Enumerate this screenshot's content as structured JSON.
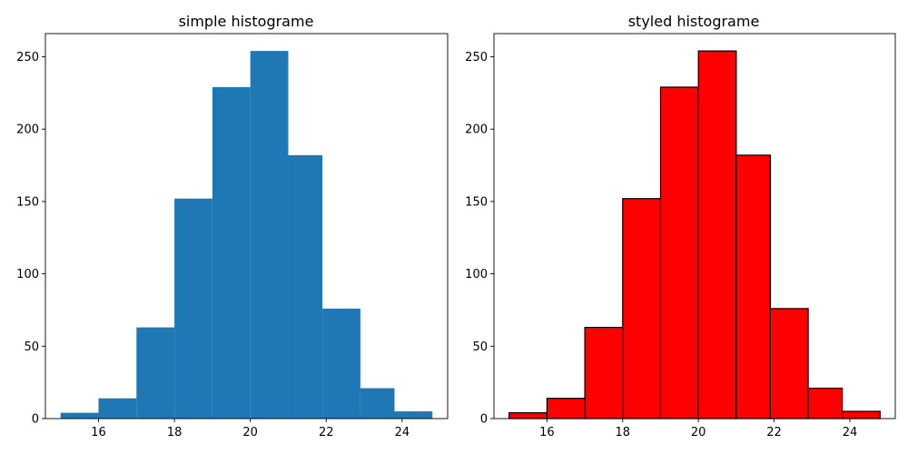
{
  "chart_data": [
    {
      "type": "bar",
      "title": "simple histograme",
      "xlabel": "",
      "ylabel": "",
      "bin_edges": [
        15.0,
        16.0,
        17.0,
        18.0,
        19.0,
        20.0,
        21.0,
        21.9,
        22.9,
        23.8,
        24.8
      ],
      "values": [
        4,
        14,
        63,
        152,
        229,
        254,
        182,
        76,
        21,
        5
      ],
      "xlim": [
        14.6,
        25.2
      ],
      "ylim": [
        0,
        266
      ],
      "x_ticks": [
        16,
        18,
        20,
        22,
        24
      ],
      "y_ticks": [
        0,
        50,
        100,
        150,
        200,
        250
      ],
      "bar_color": "#1f77b4",
      "edge_color": null,
      "grid": false
    },
    {
      "type": "bar",
      "title": "styled histograme",
      "xlabel": "",
      "ylabel": "",
      "bin_edges": [
        15.0,
        16.0,
        17.0,
        18.0,
        19.0,
        20.0,
        21.0,
        21.9,
        22.9,
        23.8,
        24.8
      ],
      "values": [
        4,
        14,
        63,
        152,
        229,
        254,
        182,
        76,
        21,
        5
      ],
      "xlim": [
        14.6,
        25.2
      ],
      "ylim": [
        0,
        266
      ],
      "x_ticks": [
        16,
        18,
        20,
        22,
        24
      ],
      "y_ticks": [
        0,
        50,
        100,
        150,
        200,
        250
      ],
      "bar_color": "#ff0000",
      "edge_color": "#000000",
      "grid": false
    }
  ]
}
